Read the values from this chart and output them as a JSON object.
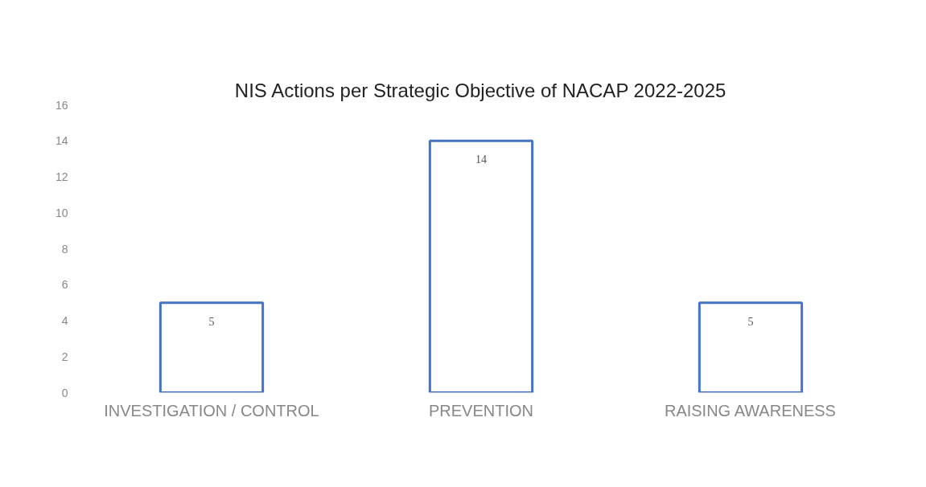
{
  "chart_data": {
    "type": "bar",
    "title": "NIS Actions per Strategic Objective of NACAP 2022-2025",
    "categories": [
      "INVESTIGATION / CONTROL",
      "PREVENTION",
      "RAISING AWARENESS"
    ],
    "values": [
      5,
      14,
      5
    ],
    "color": "#4472c4",
    "ylim": [
      0,
      16
    ],
    "yticks": [
      0,
      2,
      4,
      6,
      8,
      10,
      12,
      14,
      16
    ],
    "grid": false,
    "data_labels": true
  }
}
